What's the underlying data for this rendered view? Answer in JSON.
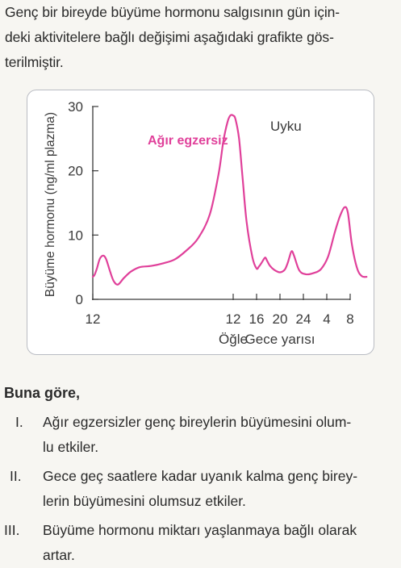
{
  "intro": {
    "lines": [
      "Genç bir bireyde büyüme hormonu salgısının gün için-",
      "deki aktivitelere bağlı değişimi aşağıdaki grafikte gös-",
      "terilmiştir."
    ]
  },
  "chart_data": {
    "type": "line",
    "title": "",
    "ylabel": "Büyüme hormonu (ng/ml plazma)",
    "xlabel": "",
    "ylim": [
      0,
      30
    ],
    "yticks": [
      "0",
      "10",
      "20",
      "30"
    ],
    "xticks": [
      "12",
      "12",
      "16",
      "20",
      "24",
      "4",
      "8"
    ],
    "xtick_hours": [
      0,
      24,
      28,
      32,
      36,
      40,
      44
    ],
    "x_sublabels": [
      {
        "under_tick": 1,
        "text": "Öğle"
      },
      {
        "under_tick": 3,
        "text": "Gece yarısı"
      }
    ],
    "annotations": {
      "exercise": "Ağır egzersiz",
      "sleep": "Uyku"
    },
    "series": [
      {
        "color": "#e0409a",
        "x": [
          0,
          0.3,
          0.7,
          1.2,
          1.8,
          2.3,
          3,
          3.6,
          4.3,
          5.3,
          6.5,
          8,
          10,
          12,
          14,
          16,
          18,
          20,
          21.5,
          22.3,
          23,
          23.5,
          24,
          24.4,
          25,
          25.6,
          26.3,
          27.3,
          28,
          28.4,
          28.8,
          29.2,
          29.5,
          29.8,
          30.3,
          31,
          32,
          32.8,
          33.3,
          33.6,
          34,
          34.4,
          35.3,
          36.4,
          37.8,
          39,
          40.2,
          41.4,
          42.2,
          43,
          43.6,
          44.3,
          45.2,
          46,
          46.8
        ],
        "values": [
          3.5,
          3.8,
          4.8,
          6.3,
          6.8,
          6.2,
          4.2,
          2.8,
          2.3,
          3.3,
          4.3,
          5,
          5.2,
          5.6,
          6.2,
          7.6,
          9.5,
          13.2,
          19.5,
          24.5,
          27.5,
          28.6,
          28.6,
          28,
          25,
          19,
          12,
          6.5,
          4.8,
          5.1,
          5.6,
          6.2,
          6.5,
          6.0,
          5.2,
          4.6,
          4.2,
          4.6,
          5.6,
          6.5,
          7.5,
          6.8,
          4.5,
          3.9,
          4.1,
          4.7,
          6.6,
          10.5,
          12.8,
          14.3,
          13.5,
          8.5,
          4.8,
          3.6,
          3.5
        ]
      }
    ],
    "grid": false,
    "legend": "none"
  },
  "question": {
    "heading": "Buna göre,",
    "options": [
      {
        "num": "I.",
        "lines": [
          "Ağır egzersizler genç bireylerin büyümesini olum-",
          "lu etkiler."
        ]
      },
      {
        "num": "II.",
        "lines": [
          "Gece geç saatlere kadar uyanık kalma genç birey-",
          "lerin büyümesini olumsuz etkiler."
        ]
      },
      {
        "num": "III.",
        "lines": [
          "Büyüme hormonu miktarı yaşlanmaya bağlı olarak",
          "artar."
        ]
      }
    ]
  }
}
